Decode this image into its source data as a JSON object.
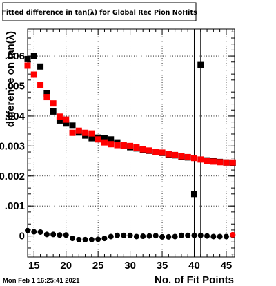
{
  "chart_data": {
    "type": "scatter",
    "title": "Fitted difference in tan(λ) for Global Rec Pion NoHits",
    "xlabel": "No. of Fit Points",
    "ylabel": "difference on tan(λ)",
    "xlim": [
      14,
      46.3
    ],
    "ylim": [
      -0.0007,
      0.0069
    ],
    "grid": true,
    "x_ticks": [
      15,
      20,
      25,
      30,
      35,
      40,
      45
    ],
    "x_tick_labels": [
      "15",
      "20",
      "25",
      "30",
      "35",
      "40",
      "45"
    ],
    "y_ticks": [
      0,
      0.001,
      0.002,
      0.003,
      0.004,
      0.005,
      0.006
    ],
    "y_tick_labels": [
      "0",
      ".001",
      "0.002",
      "0.003",
      ".004",
      ".005",
      ".006"
    ],
    "vertical_lines_x": [
      40,
      41
    ],
    "footer": "Mon Feb  1 16:25:41 2021",
    "series": [
      {
        "color": "#000000",
        "marker": "square",
        "x": [
          14,
          15,
          16,
          17,
          18,
          19,
          20,
          21,
          22,
          23,
          24,
          25,
          26,
          27,
          28,
          29,
          30,
          31,
          32,
          33,
          34,
          35,
          36,
          37,
          38,
          39,
          40,
          41,
          42,
          43,
          44,
          45,
          46
        ],
        "y": [
          0.0059,
          0.006,
          0.00565,
          0.00475,
          0.00415,
          0.00385,
          0.00375,
          0.00368,
          0.00345,
          0.00335,
          0.00326,
          0.00328,
          0.00326,
          0.00322,
          0.00312,
          0.003,
          0.00296,
          0.00292,
          0.00287,
          0.00284,
          0.0028,
          0.00277,
          0.00272,
          0.00269,
          0.00265,
          0.00262,
          0.0014,
          0.0057,
          0.00252,
          0.0025,
          0.00247,
          0.00245,
          0.00244
        ]
      },
      {
        "color": "#ff0000",
        "marker": "square",
        "x": [
          14,
          15,
          16,
          17,
          18,
          19,
          20,
          21,
          22,
          23,
          24,
          25,
          26,
          27,
          28,
          29,
          30,
          31,
          32,
          33,
          34,
          35,
          36,
          37,
          38,
          39,
          40,
          41,
          42,
          43,
          44,
          45,
          46
        ],
        "y": [
          0.00568,
          0.00538,
          0.00503,
          0.00463,
          0.00442,
          0.00398,
          0.00388,
          0.00344,
          0.00351,
          0.00344,
          0.00342,
          0.00322,
          0.00312,
          0.00306,
          0.00303,
          0.00302,
          0.003,
          0.00295,
          0.00289,
          0.00285,
          0.00281,
          0.00278,
          0.00273,
          0.0027,
          0.00266,
          0.00263,
          0.0026,
          0.00255,
          0.00251,
          0.00248,
          0.00246,
          0.00245,
          0.00245
        ]
      },
      {
        "color": "#000000",
        "marker": "circle",
        "x": [
          14,
          15,
          16,
          17,
          18,
          19,
          20,
          21,
          22,
          23,
          24,
          25,
          26,
          27,
          28,
          29,
          30,
          31,
          32,
          33,
          34,
          35,
          36,
          37,
          38,
          39,
          40,
          41,
          42,
          43,
          44,
          45,
          46
        ],
        "y": [
          0.00018,
          0.00014,
          0.00013,
          5e-05,
          5e-05,
          3e-05,
          3e-05,
          -8e-05,
          -0.00012,
          -0.00012,
          -0.00012,
          -0.00011,
          -8e-05,
          -2e-05,
          2e-05,
          2e-05,
          2e-05,
          -2e-05,
          -1e-05,
          0,
          1e-05,
          -3e-05,
          -3e-05,
          -2e-05,
          2e-05,
          2e-05,
          2e-05,
          2e-05,
          0,
          -2e-05,
          -2e-05,
          -2e-05,
          3e-05
        ]
      },
      {
        "color": "#ff0000",
        "marker": "circle",
        "x": [
          46
        ],
        "y": [
          4e-05
        ]
      }
    ]
  }
}
